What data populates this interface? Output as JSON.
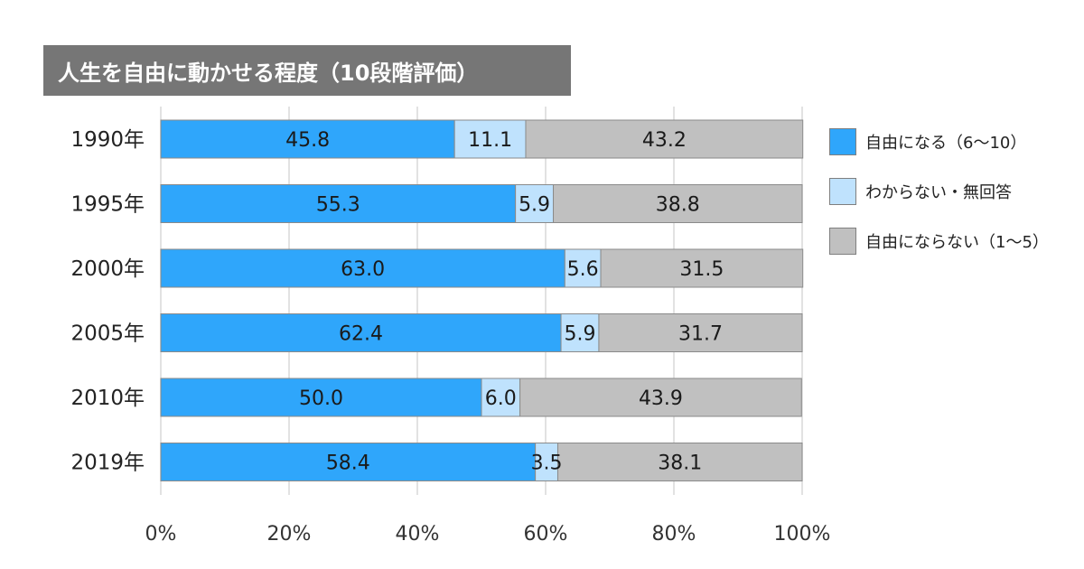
{
  "chart_data": {
    "type": "bar",
    "orientation": "horizontal",
    "stacked": true,
    "title": "人生を自由に動かせる程度（10段階評価）",
    "categories": [
      "1990年",
      "1995年",
      "2000年",
      "2005年",
      "2010年",
      "2019年"
    ],
    "series": [
      {
        "name": "自由になる（6〜10）",
        "color": "#2fa6fb",
        "values": [
          45.8,
          55.3,
          63.0,
          62.4,
          50.0,
          58.4
        ],
        "labels": [
          "45.8",
          "55.3",
          "63.0",
          "62.4",
          "50.0",
          "58.4"
        ]
      },
      {
        "name": "わからない・無回答",
        "color": "#bfe2fd",
        "values": [
          11.1,
          5.9,
          5.6,
          5.9,
          6.0,
          3.5
        ],
        "labels": [
          "11.1",
          "5.9",
          "5.6",
          "5.9",
          "6.0",
          "3.5"
        ]
      },
      {
        "name": "自由にならない（1〜5）",
        "color": "#c0c0c0",
        "values": [
          43.2,
          38.8,
          31.5,
          31.7,
          43.9,
          38.1
        ],
        "labels": [
          "43.2",
          "38.8",
          "31.5",
          "31.7",
          "43.9",
          "38.1"
        ]
      }
    ],
    "xlim": [
      0,
      100
    ],
    "xticks": [
      "0%",
      "20%",
      "40%",
      "60%",
      "80%",
      "100%"
    ],
    "grid": true,
    "legend_position": "right"
  }
}
